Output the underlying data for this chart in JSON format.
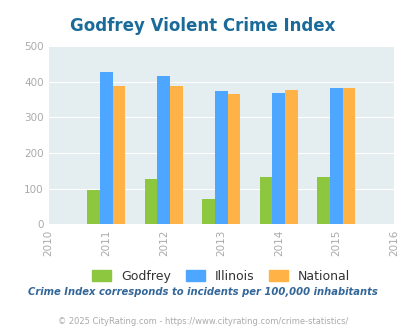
{
  "title": "Godfrey Violent Crime Index",
  "years": [
    2010,
    2011,
    2012,
    2013,
    2014,
    2015,
    2016
  ],
  "xlim": [
    2010,
    2016
  ],
  "ylim": [
    0,
    500
  ],
  "yticks": [
    0,
    100,
    200,
    300,
    400,
    500
  ],
  "data_years": [
    2011,
    2012,
    2013,
    2014,
    2015
  ],
  "godfrey": [
    96,
    126,
    70,
    132,
    132
  ],
  "illinois": [
    428,
    415,
    374,
    370,
    383
  ],
  "national": [
    388,
    387,
    367,
    376,
    382
  ],
  "godfrey_color": "#8dc63f",
  "illinois_color": "#4da6ff",
  "national_color": "#ffb347",
  "bg_color": "#e4edf0",
  "title_color": "#1a6b9a",
  "bar_width": 0.22,
  "subtitle": "Crime Index corresponds to incidents per 100,000 inhabitants",
  "footer": "© 2025 CityRating.com - https://www.cityrating.com/crime-statistics/",
  "legend_labels": [
    "Godfrey",
    "Illinois",
    "National"
  ],
  "grid_color": "#ffffff",
  "subtitle_color": "#336699",
  "footer_color": "#aaaaaa",
  "tick_color": "#aaaaaa"
}
